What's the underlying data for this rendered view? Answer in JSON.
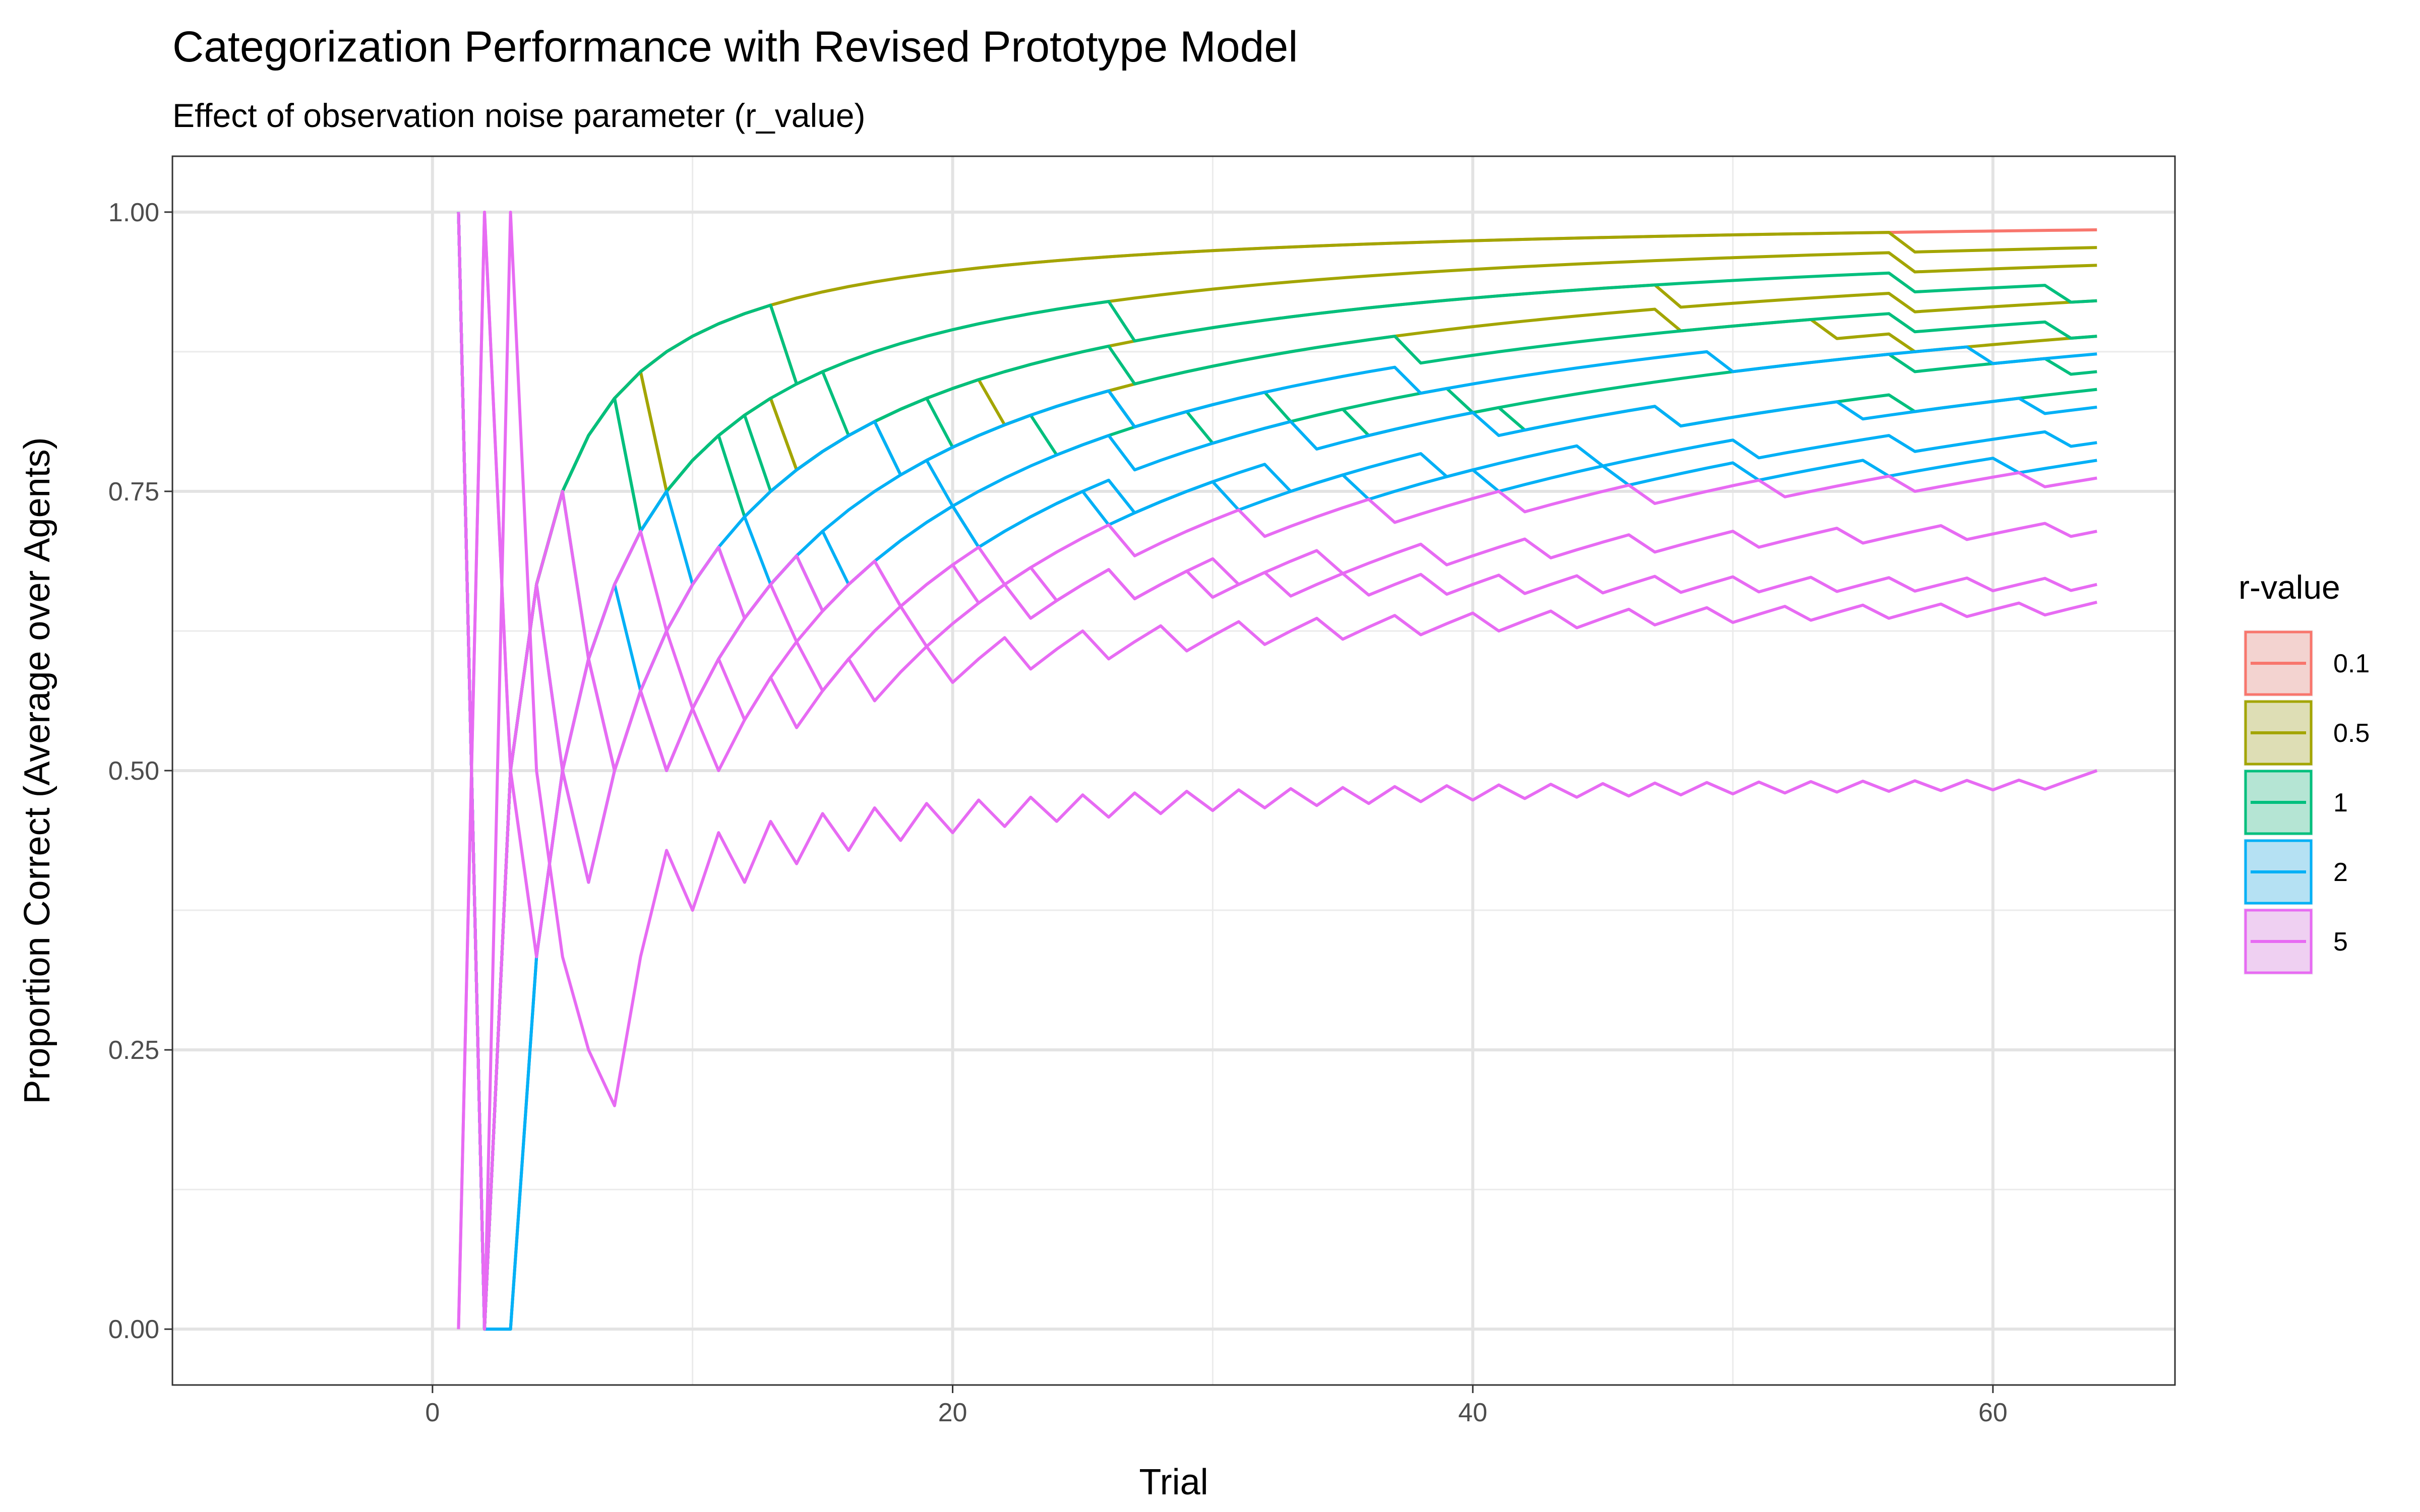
{
  "chart_data": {
    "type": "line",
    "title": "Categorization Performance with Revised Prototype Model",
    "subtitle": "Effect of observation noise parameter (r_value)",
    "xlabel": "Trial",
    "ylabel": "Proportion Correct (Average over Agents)",
    "xlim": [
      -10,
      67
    ],
    "ylim": [
      -0.05,
      1.05
    ],
    "x_ticks": [
      0,
      20,
      40,
      60
    ],
    "x_tick_labels": [
      "0",
      "20",
      "40",
      "60"
    ],
    "y_ticks": [
      0,
      0.25,
      0.5,
      0.75,
      1
    ],
    "y_tick_labels": [
      "0.00",
      "0.25",
      "0.50",
      "0.75",
      "1.00"
    ],
    "grid": true,
    "legend": {
      "title": "r-value",
      "position": "right",
      "entries": [
        {
          "label": "0.1",
          "color": "#F8766D"
        },
        {
          "label": "0.5",
          "color": "#A3A500"
        },
        {
          "label": "1",
          "color": "#00BF7D"
        },
        {
          "label": "2",
          "color": "#00B0F6"
        },
        {
          "label": "5",
          "color": "#E76BF3"
        }
      ]
    },
    "series": [
      {
        "group": "0.1",
        "start_x": 1,
        "start_y": 1.0,
        "pattern": "recurrence",
        "correct_first": 0,
        "ks": [],
        "end_x": 64
      },
      {
        "group": "0.5",
        "start_x": 1,
        "start_y": 1.0,
        "pattern": "recurrence",
        "correct_first": 0,
        "ks": [
          57
        ],
        "end_x": 64
      },
      {
        "group": "0.5",
        "start_x": 1,
        "start_y": 1.0,
        "pattern": "recurrence",
        "correct_first": 0,
        "ks": [
          14,
          57
        ],
        "end_x": 64
      },
      {
        "group": "0.5",
        "start_x": 1,
        "start_y": 1.0,
        "pattern": "recurrence",
        "correct_first": 0,
        "ks": [
          9,
          14,
          48,
          57
        ],
        "end_x": 64
      },
      {
        "group": "0.5",
        "start_x": 1,
        "start_y": 1.0,
        "pattern": "recurrence",
        "correct_first": 0,
        "ks": [
          9,
          14,
          22,
          48,
          54,
          57
        ],
        "end_x": 64
      },
      {
        "group": "1",
        "start_x": 1,
        "start_y": 1.0,
        "pattern": "recurrence",
        "correct_first": 0,
        "ks": [
          14,
          27,
          57,
          63
        ],
        "end_x": 64
      },
      {
        "group": "1",
        "start_x": 1,
        "start_y": 1.0,
        "pattern": "recurrence",
        "correct_first": 0,
        "ks": [
          8,
          16,
          27,
          38,
          57,
          63
        ],
        "end_x": 64
      },
      {
        "group": "1",
        "start_x": 1,
        "start_y": 1.0,
        "pattern": "recurrence",
        "correct_first": 0,
        "ks": [
          8,
          13,
          20,
          27,
          33,
          40,
          57,
          63
        ],
        "end_x": 64
      },
      {
        "group": "1",
        "start_x": 1,
        "start_y": 1.0,
        "pattern": "recurrence",
        "correct_first": 0,
        "ks": [
          6,
          12,
          18,
          24,
          30,
          36,
          42,
          48,
          57
        ],
        "end_x": 64
      },
      {
        "group": "2",
        "start_x": 1,
        "start_y": 1.0,
        "pattern": "recurrence",
        "correct_first": 0,
        "ks": [
          3,
          10,
          18,
          27,
          38,
          50,
          60
        ],
        "end_x": 64
      },
      {
        "group": "2",
        "start_x": 1,
        "start_y": 1.0,
        "pattern": "recurrence",
        "correct_first": 0,
        "ks": [
          3,
          7,
          13,
          20,
          27,
          34,
          41,
          48,
          55,
          62
        ],
        "end_x": 64
      },
      {
        "group": "2",
        "start_x": 1,
        "start_y": 1.0,
        "pattern": "recurrence",
        "correct_first": 0,
        "ks": [
          3,
          6,
          9,
          15,
          21,
          27,
          33,
          39,
          45,
          51,
          57,
          63
        ],
        "end_x": 64
      },
      {
        "group": "2",
        "start_x": 1,
        "start_y": 1.0,
        "pattern": "recurrence",
        "correct_first": 0,
        "ks": [
          2,
          5,
          8,
          12,
          16,
          21,
          26,
          31,
          36,
          41,
          46,
          51,
          56,
          61
        ],
        "end_x": 64
      },
      {
        "group": "5",
        "start_x": 1,
        "start_y": 1.0,
        "pattern": "recurrence",
        "correct_first": 0,
        "ks": [
          2,
          4,
          7,
          10,
          14,
          18,
          22,
          27,
          32,
          37,
          42,
          47,
          52,
          57,
          62
        ],
        "end_x": 64
      },
      {
        "group": "5",
        "start_x": 1,
        "start_y": 1.0,
        "pattern": "recurrence",
        "correct_first": 0,
        "ks": [
          2,
          4,
          6,
          9,
          12,
          15,
          19,
          23,
          27,
          31,
          35,
          39,
          43,
          47,
          51,
          55,
          59,
          63
        ],
        "end_x": 64
      },
      {
        "group": "5",
        "start_x": 1,
        "start_y": 0.0,
        "pattern": "recurrence",
        "correct_first": 1,
        "ks": [
          3,
          6,
          9,
          12,
          15,
          18,
          21,
          24,
          27,
          30,
          33,
          36,
          39,
          42,
          45,
          48,
          51,
          54,
          57,
          60,
          63
        ],
        "end_x": 64
      },
      {
        "group": "5",
        "start_x": 1,
        "start_y": 0.0,
        "pattern": "recurrence",
        "correct_first": 1,
        "ks": [
          3,
          5,
          7,
          9,
          11,
          14,
          17,
          20,
          23,
          26,
          29,
          32,
          35,
          38,
          41,
          44,
          47,
          50,
          53,
          56,
          59,
          62
        ],
        "end_x": 64
      },
      {
        "group": "5",
        "start_x": 2,
        "start_y": 0.0,
        "pattern": "recurrence",
        "correct_first": 1,
        "ks": [
          2,
          3,
          4,
          5,
          6,
          7,
          10,
          12,
          14,
          16,
          18,
          20,
          22,
          24,
          26,
          28,
          30,
          32,
          34,
          36,
          38,
          40,
          42,
          44,
          46,
          48,
          50,
          52,
          54,
          56,
          58,
          60,
          62
        ],
        "end_x": 64
      }
    ]
  }
}
